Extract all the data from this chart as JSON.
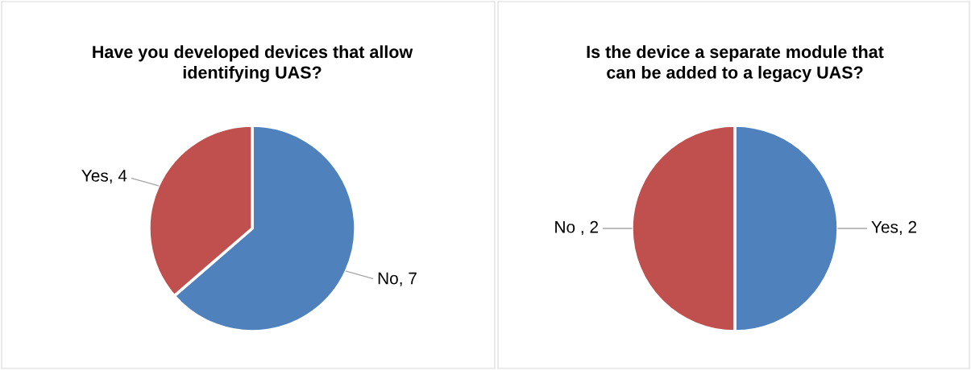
{
  "chart_data": [
    {
      "type": "pie",
      "title": "Have you developed devices that allow\nidentifying UAS?",
      "categories": [
        "No, 7",
        "Yes, 4"
      ],
      "values": [
        7,
        4
      ],
      "colors": [
        "#4f81bd",
        "#c0504d"
      ]
    },
    {
      "type": "pie",
      "title": "Is the device a separate module that\ncan be added to a legacy UAS?",
      "categories": [
        "Yes, 2",
        "No , 2"
      ],
      "values": [
        2,
        2
      ],
      "colors": [
        "#4f81bd",
        "#c0504d"
      ]
    }
  ]
}
